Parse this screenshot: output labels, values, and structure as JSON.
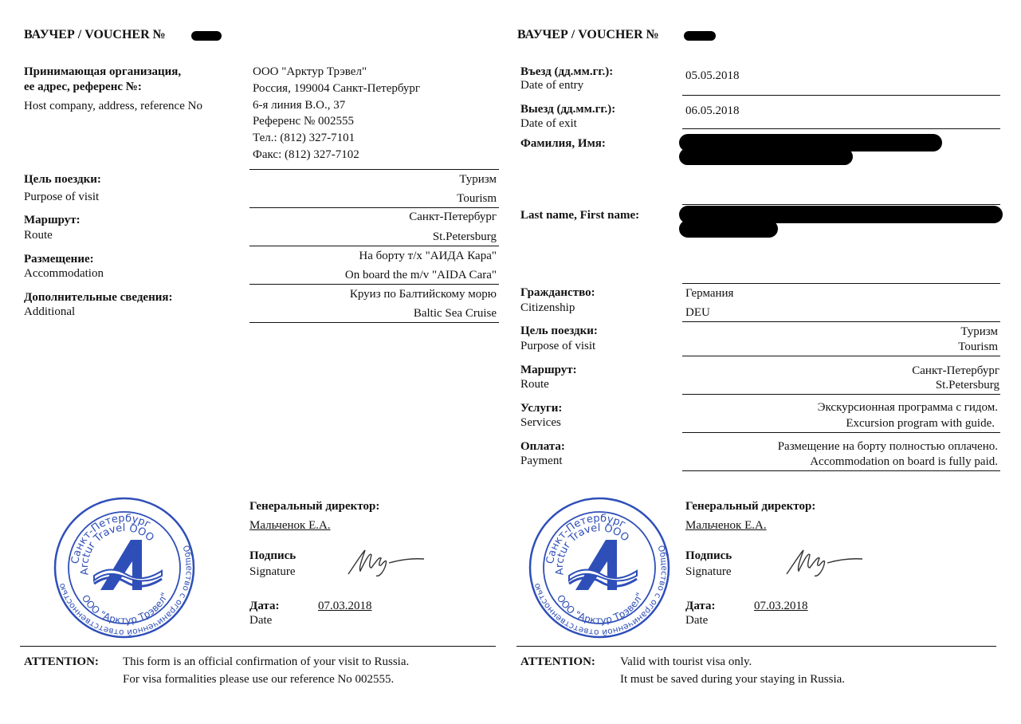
{
  "left": {
    "title": "ВАУЧЕР / VOUCHER №",
    "host": {
      "label_ru_1": "Принимающая организация,",
      "label_ru_2": "ее адрес, референс №:",
      "label_en": "Host company, address, reference No",
      "lines": [
        "ООО \"Арктур Трэвел\"",
        "Россия, 199004 Санкт-Петербург",
        "6-я линия В.О., 37",
        "Референс № 002555",
        "Тел.: (812) 327-7101",
        "Факс: (812) 327-7102"
      ]
    },
    "rows": [
      {
        "label_ru": "Цель поездки:",
        "label_en": "Purpose of visit",
        "value_ru": "Туризм",
        "value_en": "Tourism"
      },
      {
        "label_ru": "Маршрут:",
        "label_en": "Route",
        "value_ru": "Санкт-Петербург",
        "value_en": "St.Petersburg"
      },
      {
        "label_ru": "Размещение:",
        "label_en": "Accommodation",
        "value_ru": "На борту т/х \"АИДА Кара\"",
        "value_en": "On board the m/v \"AIDA Cara\""
      },
      {
        "label_ru": "Дополнительные сведения:",
        "label_en": "Additional",
        "value_ru": "Круиз по Балтийскому морю",
        "value_en": "Baltic Sea Cruise"
      }
    ],
    "director_label": "Генеральный директор:",
    "director_name": "Мальченок Е.А.",
    "signature_ru": "Подпись",
    "signature_en": "Signature",
    "date_ru": "Дата:",
    "date_en": "Date",
    "date_value": "07.03.2018",
    "attention_label": "ATTENTION:",
    "attention_lines": [
      "This form is an official confirmation of your visit to Russia.",
      "For visa formalities please use our reference No 002555."
    ]
  },
  "right": {
    "title": "ВАУЧЕР / VOUCHER №",
    "entry": {
      "label_ru": "Въезд (дд.мм.гг.):",
      "label_en": "Date of entry",
      "value": "05.05.2018"
    },
    "exit": {
      "label_ru": "Выезд (дд.мм.гг.):",
      "label_en": "Date of exit",
      "value": "06.05.2018"
    },
    "name_ru_label": "Фамилия, Имя:",
    "name_en_label": "Last name, First name:",
    "citizenship": {
      "label_ru": "Гражданство:",
      "label_en": "Citizenship",
      "value_ru": "Германия",
      "value_en": "DEU"
    },
    "rows": [
      {
        "label_ru": "Цель поездки:",
        "label_en": "Purpose of visit",
        "value_ru": "Туризм",
        "value_en": "Tourism"
      },
      {
        "label_ru": "Маршрут:",
        "label_en": "Route",
        "value_ru": "Санкт-Петербург",
        "value_en": "St.Petersburg"
      },
      {
        "label_ru": "Услуги:",
        "label_en": "Services",
        "value_ru": "Экскурсионная программа с гидом.",
        "value_en": "Excursion program with guide."
      },
      {
        "label_ru": "Оплата:",
        "label_en": "Payment",
        "value_ru": "Размещение на борту полностью оплачено.",
        "value_en": "Accommodation on board is fully paid."
      }
    ],
    "director_label": "Генеральный директор:",
    "director_name": "Мальченок Е.А.",
    "signature_ru": "Подпись",
    "signature_en": "Signature",
    "date_ru": "Дата:",
    "date_en": "Date",
    "date_value": "07.03.2018",
    "attention_label": "ATTENTION:",
    "attention_lines": [
      "Valid with tourist visa only.",
      "It must be saved during your staying in Russia."
    ]
  },
  "stamp": {
    "top": "Санкт-Петербург",
    "mid": "Arctur Travel ООО",
    "bottom": "ООО \"Арктур Трэвел\"",
    "outer": "Общество с ограниченной ответственностью",
    "color": "#2f4fb8"
  }
}
